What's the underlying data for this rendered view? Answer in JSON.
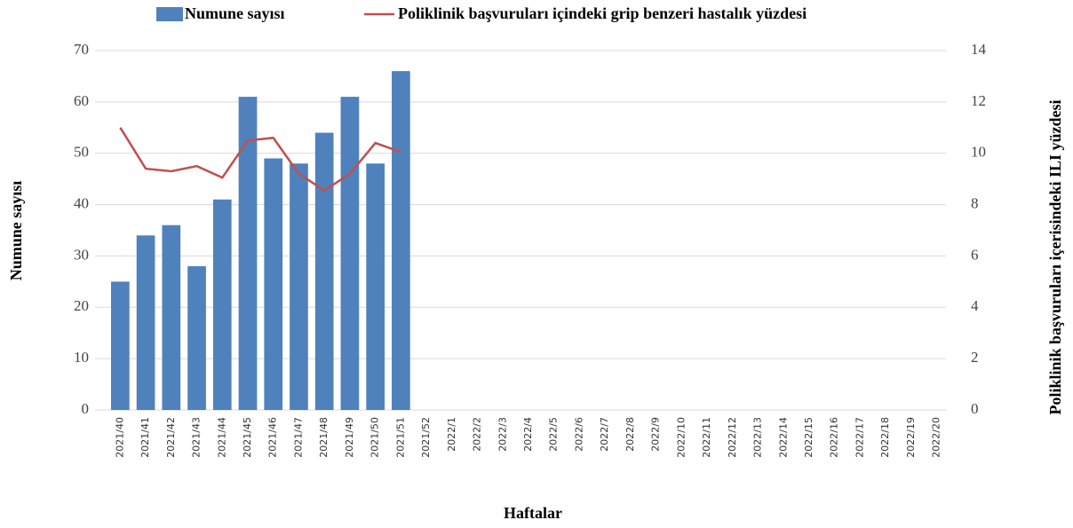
{
  "chart_data": {
    "type": "bar-line",
    "x_label": "Haftalar",
    "y_label": "Numune sayısı",
    "y2_label": "Poliklinik başvuruları içerisindeki ILI yüzdesi",
    "categories": [
      "2021/40",
      "2021/41",
      "2021/42",
      "2021/43",
      "2021/44",
      "2021/45",
      "2021/46",
      "2021/47",
      "2021/48",
      "2021/49",
      "2021/50",
      "2021/51",
      "2021/52",
      "2022/1",
      "2022/2",
      "2022/3",
      "2022/4",
      "2022/5",
      "2022/6",
      "2022/7",
      "2022/8",
      "2022/9",
      "2022/10",
      "2022/11",
      "2022/12",
      "2022/13",
      "2022/14",
      "2022/15",
      "2022/16",
      "2022/17",
      "2022/18",
      "2022/19",
      "2022/20"
    ],
    "series": [
      {
        "name": "Numune sayısı",
        "type": "bar",
        "color": "#4f81bd",
        "values": [
          25,
          34,
          36,
          28,
          41,
          61,
          49,
          48,
          54,
          61,
          48,
          66,
          null,
          null,
          null,
          null,
          null,
          null,
          null,
          null,
          null,
          null,
          null,
          null,
          null,
          null,
          null,
          null,
          null,
          null,
          null,
          null,
          null
        ]
      },
      {
        "name": "Poliklinik başvuruları içindeki grip benzeri hastalık yüzdesi",
        "type": "line",
        "axis": "y2",
        "color": "#c0504d",
        "values": [
          11.0,
          9.4,
          9.3,
          9.5,
          9.05,
          10.5,
          10.6,
          9.2,
          8.55,
          9.2,
          10.4,
          10.05,
          null,
          null,
          null,
          null,
          null,
          null,
          null,
          null,
          null,
          null,
          null,
          null,
          null,
          null,
          null,
          null,
          null,
          null,
          null,
          null,
          null
        ]
      }
    ],
    "ylim": [
      0,
      70
    ],
    "yticks": [
      0,
      10,
      20,
      30,
      40,
      50,
      60,
      70
    ],
    "y2lim": [
      0,
      14
    ],
    "y2ticks": [
      0,
      2,
      4,
      6,
      8,
      10,
      12,
      14
    ],
    "grid": true
  }
}
